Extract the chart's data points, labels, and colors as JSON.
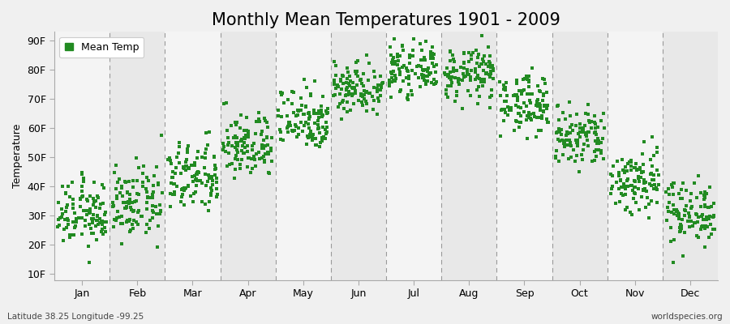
{
  "title": "Monthly Mean Temperatures 1901 - 2009",
  "ylabel": "Temperature",
  "xlabel_months": [
    "Jan",
    "Feb",
    "Mar",
    "Apr",
    "May",
    "Jun",
    "Jul",
    "Aug",
    "Sep",
    "Oct",
    "Nov",
    "Dec"
  ],
  "ytick_labels": [
    "10F",
    "20F",
    "30F",
    "40F",
    "50F",
    "60F",
    "70F",
    "80F",
    "90F"
  ],
  "ytick_values": [
    10,
    20,
    30,
    40,
    50,
    60,
    70,
    80,
    90
  ],
  "ylim": [
    8,
    93
  ],
  "legend_label": "Mean Temp",
  "dot_color": "#228B22",
  "dot_size": 6,
  "bg_color": "#f0f0f0",
  "plot_bg_color": "#f0f0f0",
  "col_even_color": "#e8e8e8",
  "col_odd_color": "#f4f4f4",
  "footer_left": "Latitude 38.25 Longitude -99.25",
  "footer_right": "worldspecies.org",
  "title_fontsize": 15,
  "axis_fontsize": 9,
  "tick_fontsize": 9,
  "monthly_mean": [
    30.5,
    34.0,
    43.0,
    54.0,
    63.5,
    74.0,
    80.0,
    78.5,
    68.5,
    56.5,
    42.0,
    31.5
  ],
  "monthly_std": [
    5.5,
    6.0,
    6.0,
    5.5,
    5.5,
    4.5,
    4.0,
    4.5,
    5.0,
    5.5,
    6.0,
    5.5
  ],
  "num_years": 109,
  "seed": 12345
}
